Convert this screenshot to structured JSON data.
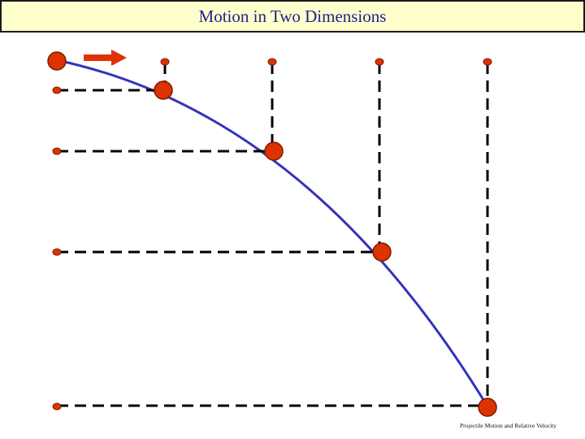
{
  "header": {
    "title": "Motion in Two Dimensions"
  },
  "footer": {
    "text": "Projectile Motion and Relative Velocity"
  },
  "colors": {
    "title_background": "#ffffcc",
    "title_text": "#1f1f8f",
    "trajectory": "#3333bb",
    "ball": "#dd3300",
    "ball_outline": "#7a1a00",
    "arrow": "#dd3300",
    "guide_line": "#000000"
  },
  "diagram": {
    "description_free": true,
    "projectile_positions": [
      {
        "index": 0
      },
      {
        "index": 1
      },
      {
        "index": 2
      },
      {
        "index": 3
      },
      {
        "index": 4
      }
    ],
    "velocity_arrow_icon": "arrow-right-icon"
  }
}
